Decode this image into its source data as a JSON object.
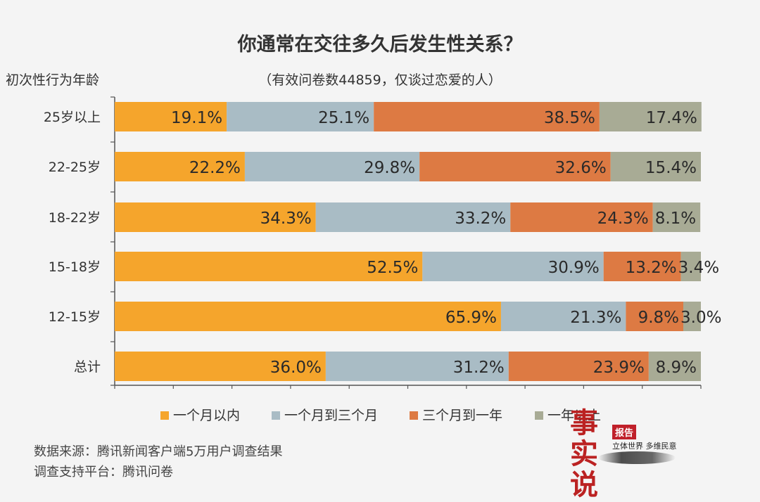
{
  "colors": {
    "s1": "#f5a52c",
    "s2": "#a9bcc5",
    "s3": "#dd7a43",
    "s4": "#a8ab95",
    "axis": "#555555",
    "text": "#333333"
  },
  "chart_data": {
    "type": "bar",
    "orientation": "horizontal",
    "stacked": true,
    "title": "你通常在交往多久后发生性关系？",
    "subtitle": "（有效问卷数44859，仅谈过恋爱的人）",
    "ylabel": "初次性行为年龄",
    "xlim": [
      0,
      100
    ],
    "categories": [
      "25岁以上",
      "22-25岁",
      "18-22岁",
      "15-18岁",
      "12-15岁",
      "总计"
    ],
    "series": [
      {
        "name": "一个月以内",
        "values": [
          19.1,
          22.2,
          34.3,
          52.5,
          65.9,
          36.0
        ]
      },
      {
        "name": "一个月到三个月",
        "values": [
          25.1,
          29.8,
          33.2,
          30.9,
          21.3,
          31.2
        ]
      },
      {
        "name": "三个月到一年",
        "values": [
          38.5,
          32.6,
          24.3,
          13.2,
          9.8,
          23.9
        ]
      },
      {
        "name": "一年以上",
        "values": [
          17.4,
          15.4,
          8.1,
          3.4,
          3.0,
          8.9
        ]
      }
    ],
    "data_labels": [
      [
        "19.1%",
        "25.1%",
        "38.5%",
        "17.4%"
      ],
      [
        "22.2%",
        "29.8%",
        "32.6%",
        "15.4%"
      ],
      [
        "34.3%",
        "33.2%",
        "24.3%",
        "8.1%"
      ],
      [
        "52.5%",
        "30.9%",
        "13.2%",
        "3.4%"
      ],
      [
        "65.9%",
        "21.3%",
        "9.8%",
        "3.0%"
      ],
      [
        "36.0%",
        "31.2%",
        "23.9%",
        "8.9%"
      ]
    ],
    "legend_position": "bottom",
    "grid": false
  },
  "footer": {
    "source": "数据来源：腾讯新闻客户端5万用户调查结果",
    "platform": "调查支持平台：腾讯问卷"
  },
  "stamp": {
    "title": "事实说",
    "badge": "报告",
    "tagline": "立体世界 多维民意"
  }
}
